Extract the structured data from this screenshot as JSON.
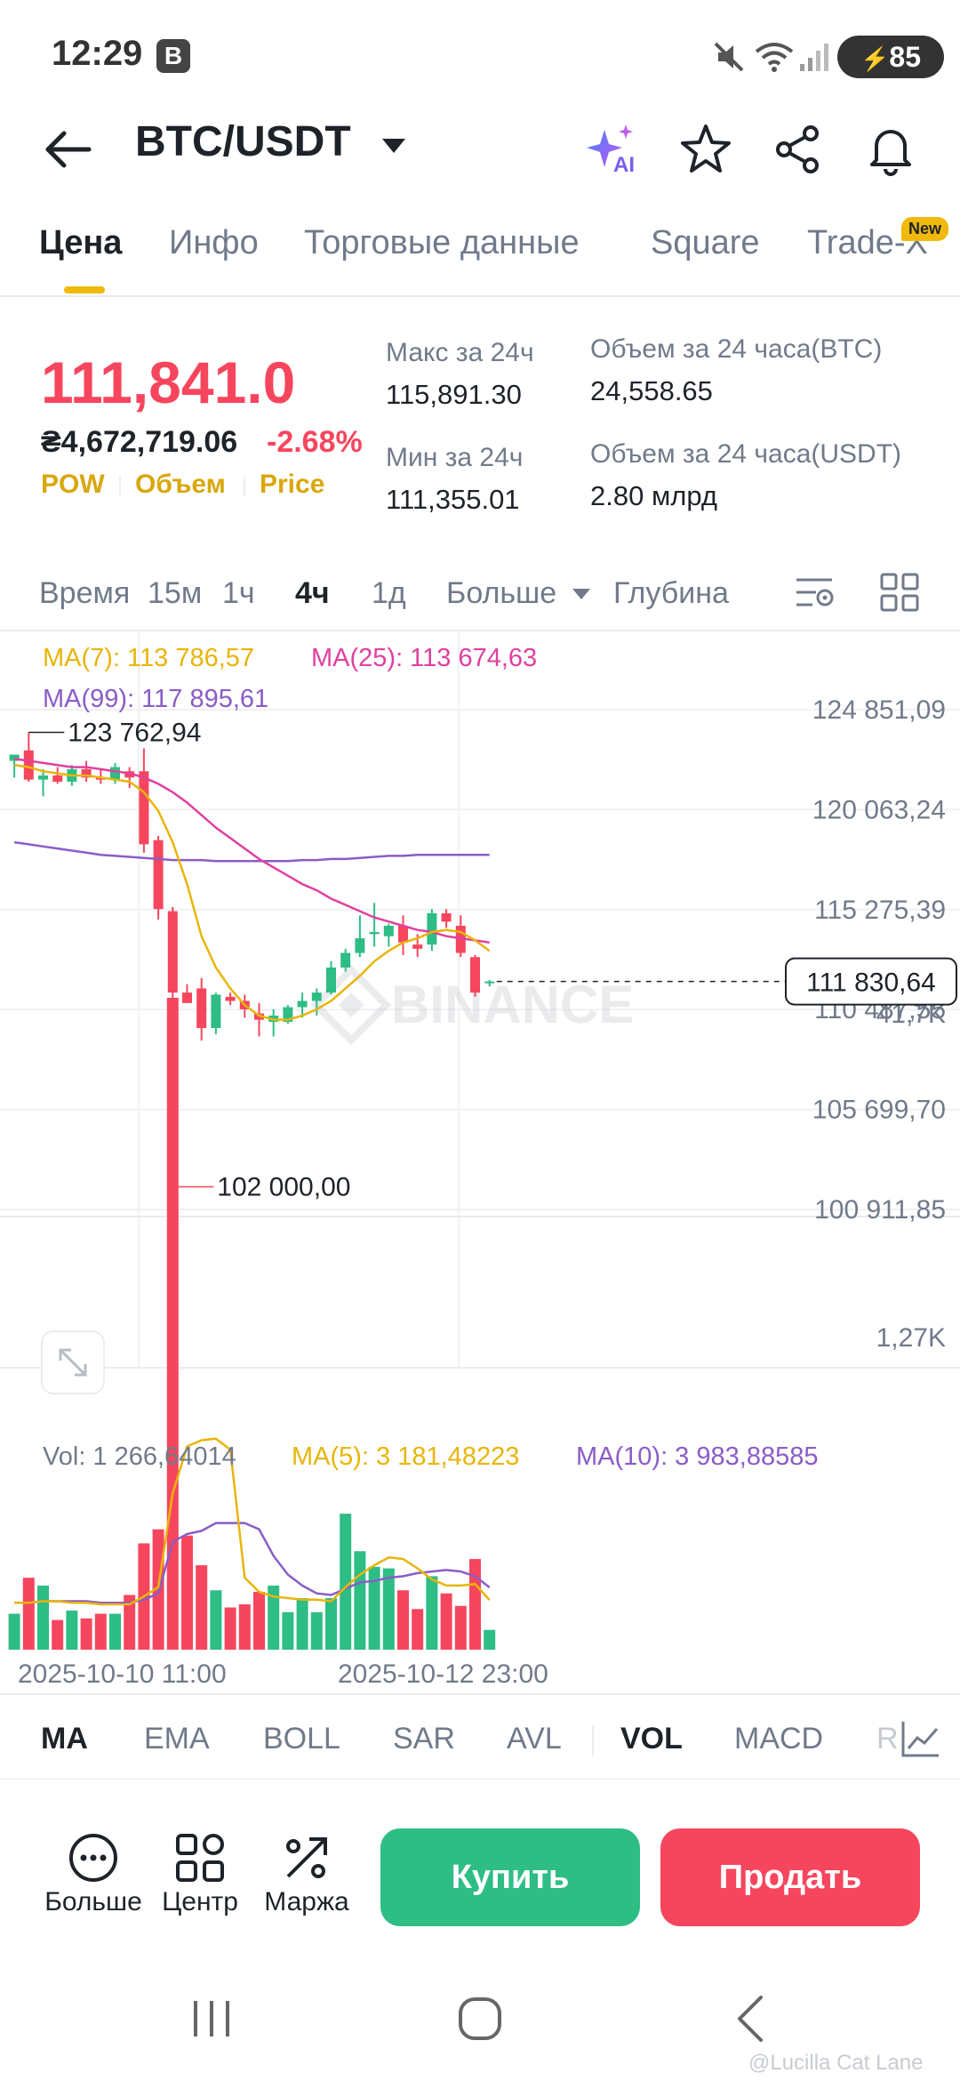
{
  "status_bar": {
    "time": "12:29",
    "badge": "B",
    "battery": "85"
  },
  "header": {
    "pair": "BTC/USDT",
    "ai_label": "AI"
  },
  "tabs": [
    {
      "label": "Цена"
    },
    {
      "label": "Инфо"
    },
    {
      "label": "Торговые данные"
    },
    {
      "label": "Square"
    },
    {
      "label": "Trade-X"
    }
  ],
  "new_badge": "New",
  "price": {
    "last": "111,841.0",
    "local": "₴4,672,719.06",
    "change": "-2.68%",
    "tags": [
      "POW",
      "Объем",
      "Price"
    ]
  },
  "stats": {
    "high_label": "Макс за 24ч",
    "high_value": "115,891.30",
    "low_label": "Мин за 24ч",
    "low_value": "111,355.01",
    "vol_btc_label": "Объем за 24 часа(BTC)",
    "vol_btc_value": "24,558.65",
    "vol_usdt_label": "Объем за 24 часа(USDT)",
    "vol_usdt_value": "2.80 млрд"
  },
  "timeframes": {
    "time_label": "Время",
    "items": [
      "15м",
      "1ч",
      "4ч",
      "1д"
    ],
    "active": "4ч",
    "more": "Больше",
    "depth": "Глубина"
  },
  "chart": {
    "ma7": "MA(7): 113 786,57",
    "ma25": "MA(25): 113 674,63",
    "ma99": "MA(99): 117 895,61",
    "price_axis": [
      "124 851,09",
      "120 063,24",
      "115 275,39",
      "110 487,55",
      "105 699,70",
      "100 911,85"
    ],
    "high_marker": "123 762,94",
    "low_marker": "102 000,00",
    "current_price": "111 830,64",
    "watermark": "BINANCE",
    "vol_label": "Vol: 1 266,64014",
    "vol_ma5": "MA(5): 3 181,48223",
    "vol_ma10": "MA(10): 3 983,88585",
    "vol_axis": [
      "41,7K",
      "1,27K"
    ],
    "time_axis": [
      "2025-10-10 11:00",
      "2025-10-12 23:00"
    ],
    "colors": {
      "up": "#2ebd85",
      "down": "#f6465d",
      "ma7": "#e8b50a",
      "ma25": "#e040a0",
      "ma99": "#8b5cc7"
    }
  },
  "chart_data": {
    "type": "candlestick",
    "interval": "4ч",
    "candles": [
      {
        "o": 122400,
        "h": 122700,
        "l": 121600,
        "c": 122700
      },
      {
        "o": 122900,
        "h": 123763,
        "l": 121400,
        "c": 121500
      },
      {
        "o": 121500,
        "h": 122000,
        "l": 120700,
        "c": 121700
      },
      {
        "o": 121700,
        "h": 122100,
        "l": 121300,
        "c": 121400
      },
      {
        "o": 121400,
        "h": 122200,
        "l": 121200,
        "c": 122000
      },
      {
        "o": 122000,
        "h": 122400,
        "l": 121400,
        "c": 121600
      },
      {
        "o": 121600,
        "h": 122000,
        "l": 121300,
        "c": 121500
      },
      {
        "o": 121500,
        "h": 122300,
        "l": 121300,
        "c": 122100
      },
      {
        "o": 121900,
        "h": 122100,
        "l": 121100,
        "c": 121600
      },
      {
        "o": 121900,
        "h": 123000,
        "l": 118000,
        "c": 118400
      },
      {
        "o": 118600,
        "h": 118800,
        "l": 114800,
        "c": 115300
      },
      {
        "o": 115200,
        "h": 115400,
        "l": 102000,
        "c": 111300
      },
      {
        "o": 111300,
        "h": 111700,
        "l": 110800,
        "c": 110800
      },
      {
        "o": 111500,
        "h": 112000,
        "l": 109000,
        "c": 109600
      },
      {
        "o": 109600,
        "h": 111300,
        "l": 109300,
        "c": 111200
      },
      {
        "o": 111100,
        "h": 111300,
        "l": 110700,
        "c": 110900
      },
      {
        "o": 110900,
        "h": 111200,
        "l": 110100,
        "c": 110500
      },
      {
        "o": 110300,
        "h": 110800,
        "l": 109200,
        "c": 110000
      },
      {
        "o": 109900,
        "h": 110500,
        "l": 109200,
        "c": 110200
      },
      {
        "o": 109900,
        "h": 110700,
        "l": 109800,
        "c": 110600
      },
      {
        "o": 110600,
        "h": 111300,
        "l": 110100,
        "c": 110900
      },
      {
        "o": 110900,
        "h": 111500,
        "l": 110200,
        "c": 111300
      },
      {
        "o": 111300,
        "h": 112800,
        "l": 111200,
        "c": 112500
      },
      {
        "o": 112500,
        "h": 113400,
        "l": 112300,
        "c": 113200
      },
      {
        "o": 113200,
        "h": 115000,
        "l": 113000,
        "c": 113900
      },
      {
        "o": 114100,
        "h": 115600,
        "l": 113500,
        "c": 114200
      },
      {
        "o": 114000,
        "h": 114600,
        "l": 113500,
        "c": 114500
      },
      {
        "o": 114500,
        "h": 115000,
        "l": 113100,
        "c": 113700
      },
      {
        "o": 113600,
        "h": 114100,
        "l": 113000,
        "c": 113400
      },
      {
        "o": 113600,
        "h": 115300,
        "l": 113300,
        "c": 115100
      },
      {
        "o": 115100,
        "h": 115300,
        "l": 114400,
        "c": 114700
      },
      {
        "o": 114500,
        "h": 115000,
        "l": 113000,
        "c": 113200
      },
      {
        "o": 113000,
        "h": 113100,
        "l": 111100,
        "c": 111300
      },
      {
        "o": 111800,
        "h": 111900,
        "l": 111600,
        "c": 111831
      }
    ],
    "ma7": [
      122200,
      122100,
      121900,
      121800,
      121700,
      121700,
      121600,
      121500,
      121400,
      120900,
      120000,
      118500,
      116500,
      114000,
      112500,
      111500,
      110700,
      110200,
      110000,
      110000,
      110200,
      110500,
      110900,
      111500,
      112100,
      112800,
      113300,
      113700,
      113900,
      114200,
      114300,
      114200,
      113800,
      113300
    ],
    "ma25": [
      122500,
      122400,
      122300,
      122200,
      122100,
      122100,
      122000,
      121900,
      121800,
      121600,
      121300,
      120900,
      120400,
      119800,
      119200,
      118700,
      118200,
      117700,
      117300,
      116900,
      116500,
      116200,
      115800,
      115500,
      115200,
      114900,
      114700,
      114500,
      114300,
      114200,
      114000,
      113900,
      113800,
      113700
    ],
    "ma99": [
      118500,
      118400,
      118300,
      118200,
      118100,
      118000,
      117900,
      117850,
      117800,
      117750,
      117700,
      117650,
      117650,
      117650,
      117600,
      117600,
      117600,
      117600,
      117600,
      117600,
      117650,
      117650,
      117700,
      117700,
      117750,
      117800,
      117850,
      117850,
      117900,
      117900,
      117900,
      117900,
      117900,
      117900
    ],
    "volume": [
      2300,
      4600,
      4100,
      1900,
      2500,
      2000,
      2300,
      2300,
      3500,
      6800,
      7700,
      41700,
      7300,
      5400,
      3800,
      2700,
      2900,
      3700,
      4100,
      2400,
      3300,
      2400,
      3300,
      8700,
      6300,
      5300,
      5200,
      3800,
      2600,
      4700,
      3600,
      2800,
      5800,
      1267
    ],
    "volume_ma5": [
      3000,
      3000,
      3100,
      3100,
      3000,
      3000,
      2900,
      2900,
      2900,
      3400,
      4000,
      10000,
      13000,
      13400,
      13500,
      12800,
      4600,
      3700,
      3400,
      3300,
      3200,
      3200,
      3100,
      4000,
      4800,
      5400,
      5900,
      5800,
      5200,
      4500,
      4100,
      4100,
      4200,
      3181
    ],
    "volume_ma10": [
      3000,
      3000,
      3100,
      3100,
      3100,
      3100,
      3000,
      3000,
      3000,
      3200,
      3600,
      6900,
      7400,
      7600,
      8100,
      8100,
      8100,
      7700,
      6000,
      4800,
      4100,
      3600,
      3500,
      3900,
      4300,
      4400,
      4600,
      4700,
      4900,
      5000,
      5100,
      5000,
      4700,
      3984
    ],
    "ylim": [
      100911.85,
      124851.09
    ],
    "vol_max": 41700,
    "x_labels": [
      "2025-10-10 11:00",
      "2025-10-12 23:00"
    ]
  },
  "indicators": {
    "items": [
      "MA",
      "EMA",
      "BOLL",
      "SAR",
      "AVL",
      "VOL",
      "MACD",
      "R"
    ],
    "active": [
      "MA",
      "VOL"
    ]
  },
  "actions": {
    "more": "Больше",
    "center": "Центр",
    "margin": "Маржа",
    "buy": "Купить",
    "sell": "Продать"
  },
  "watermark_user": "@Lucilla Cat Lane"
}
